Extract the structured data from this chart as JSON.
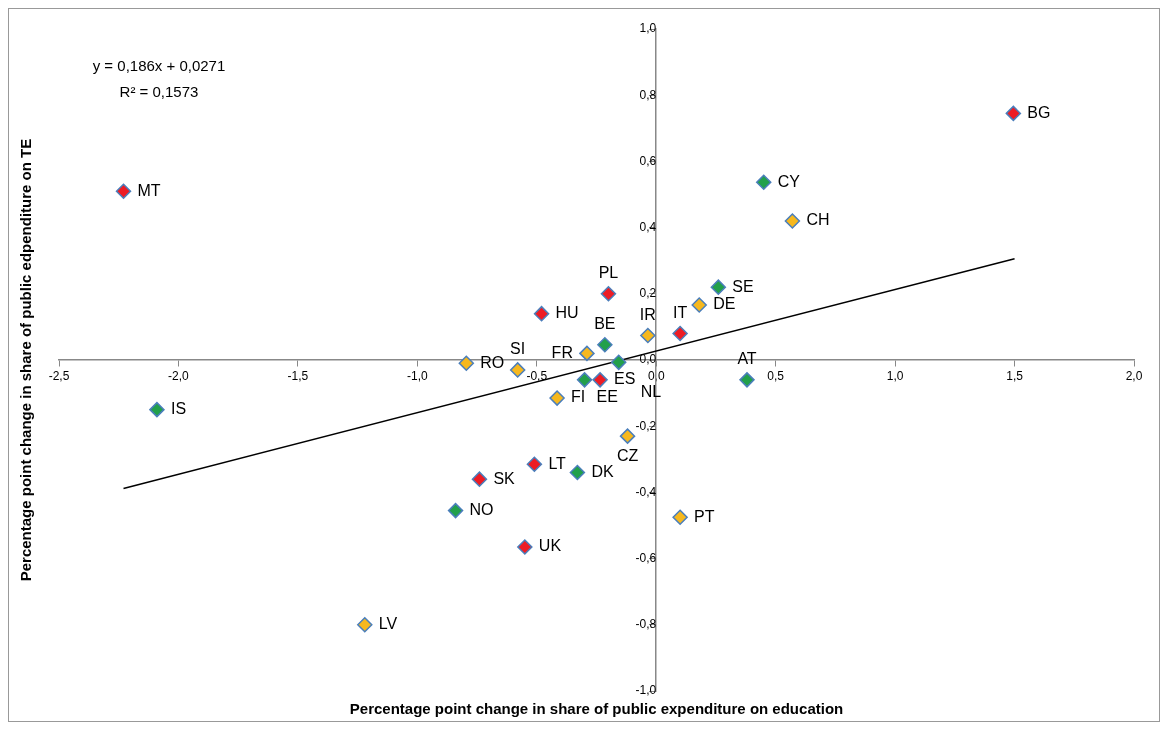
{
  "chart_data": {
    "type": "scatter",
    "xlabel": "Percentage point change in share of public expenditure on education",
    "ylabel": "Percentage point change in share of public edpenditure on TE",
    "xlim": [
      -2.5,
      2.0
    ],
    "ylim": [
      -1.0,
      1.0
    ],
    "xticks": [
      {
        "value": -2.5,
        "label": "-2,5"
      },
      {
        "value": -2.0,
        "label": "-2,0"
      },
      {
        "value": -1.5,
        "label": "-1,5"
      },
      {
        "value": -1.0,
        "label": "-1,0"
      },
      {
        "value": -0.5,
        "label": "-0,5"
      },
      {
        "value": 0,
        "label": "0,0"
      },
      {
        "value": 0.5,
        "label": "0,5"
      },
      {
        "value": 1.0,
        "label": "1,0"
      },
      {
        "value": 1.5,
        "label": "1,5"
      },
      {
        "value": 2.0,
        "label": "2,0"
      }
    ],
    "yticks": [
      {
        "value": -1.0,
        "label": "-1,0"
      },
      {
        "value": -0.8,
        "label": "-0,8"
      },
      {
        "value": -0.6,
        "label": "-0,6"
      },
      {
        "value": -0.4,
        "label": "-0,4"
      },
      {
        "value": -0.2,
        "label": "-0,2"
      },
      {
        "value": 0,
        "label": "0,0"
      },
      {
        "value": 0.2,
        "label": "0,2"
      },
      {
        "value": 0.4,
        "label": "0,4"
      },
      {
        "value": 0.6,
        "label": "0,6"
      },
      {
        "value": 0.8,
        "label": "0,8"
      },
      {
        "value": 1.0,
        "label": "1,0"
      }
    ],
    "grid": false,
    "legend": false,
    "marker": "diamond",
    "series": [
      {
        "type": "scatter",
        "x": [
          -2.23,
          -2.09,
          -1.22,
          -0.84,
          -0.795,
          -0.74,
          -0.58,
          -0.55,
          -0.51,
          -0.48,
          -0.415,
          -0.33,
          -0.3,
          -0.29,
          -0.235,
          -0.215,
          -0.2,
          -0.157,
          -0.12,
          -0.035,
          0.1,
          0.1,
          0.18,
          0.26,
          0.38,
          0.45,
          0.57,
          1.495
        ],
        "values": [
          0.51,
          -0.15,
          -0.8,
          -0.455,
          -0.01,
          -0.36,
          -0.03,
          -0.565,
          -0.315,
          0.14,
          -0.115,
          -0.34,
          -0.06,
          0.02,
          -0.06,
          0.046,
          0.2,
          -0.007,
          -0.23,
          0.074,
          0.08,
          -0.475,
          0.166,
          0.22,
          -0.06,
          0.537,
          0.42,
          0.745
        ],
        "colors": [
          "#ed1c24",
          "#22a04b",
          "#f6b81e",
          "#22a04b",
          "#f6b81e",
          "#ed1c24",
          "#f6b81e",
          "#ed1c24",
          "#ed1c24",
          "#ed1c24",
          "#f6b81e",
          "#22a04b",
          "#22a04b",
          "#f6b81e",
          "#ed1c24",
          "#22a04b",
          "#ed1c24",
          "#22a04b",
          "#f6b81e",
          "#f6b81e",
          "#ed1c24",
          "#f6b81e",
          "#f6b81e",
          "#22a04b",
          "#22a04b",
          "#22a04b",
          "#f6b81e",
          "#ed1c24"
        ]
      },
      {
        "type": "line",
        "x": [
          -2.23,
          1.5
        ],
        "values": [
          -0.388,
          0.306
        ],
        "color": "#000000",
        "marker": "none"
      }
    ],
    "annotations": [
      "y = 0,186x + 0,0271",
      "R² = 0,1573",
      {
        "text": "MT",
        "x": -2.23,
        "y": 0.51
      },
      {
        "text": "IS",
        "x": -2.09,
        "y": -0.15
      },
      {
        "text": "LV",
        "x": -1.22,
        "y": -0.8
      },
      {
        "text": "NO",
        "x": -0.84,
        "y": -0.455
      },
      {
        "text": "RO",
        "x": -0.795,
        "y": -0.01
      },
      {
        "text": "SK",
        "x": -0.74,
        "y": -0.36
      },
      {
        "text": "SI",
        "x": -0.58,
        "y": -0.03
      },
      {
        "text": "UK",
        "x": -0.55,
        "y": -0.565
      },
      {
        "text": "LT",
        "x": -0.51,
        "y": -0.315
      },
      {
        "text": "HU",
        "x": -0.48,
        "y": 0.14
      },
      {
        "text": "FI",
        "x": -0.415,
        "y": -0.115
      },
      {
        "text": "DK",
        "x": -0.33,
        "y": -0.34
      },
      {
        "text": "EE",
        "x": -0.3,
        "y": -0.06
      },
      {
        "text": "FR",
        "x": -0.29,
        "y": 0.02
      },
      {
        "text": "ES",
        "x": -0.235,
        "y": -0.06
      },
      {
        "text": "BE",
        "x": -0.215,
        "y": 0.046
      },
      {
        "text": "PL",
        "x": -0.2,
        "y": 0.2
      },
      {
        "text": "NL",
        "x": -0.157,
        "y": -0.007
      },
      {
        "text": "CZ",
        "x": -0.12,
        "y": -0.23
      },
      {
        "text": "IR",
        "x": -0.035,
        "y": 0.074
      },
      {
        "text": "IT",
        "x": 0.1,
        "y": 0.08
      },
      {
        "text": "PT",
        "x": 0.1,
        "y": -0.475
      },
      {
        "text": "DE",
        "x": 0.18,
        "y": 0.166
      },
      {
        "text": "SE",
        "x": 0.26,
        "y": 0.22
      },
      {
        "text": "AT",
        "x": 0.38,
        "y": -0.06
      },
      {
        "text": "CY",
        "x": 0.45,
        "y": 0.537
      },
      {
        "text": "CH",
        "x": 0.57,
        "y": 0.42
      },
      {
        "text": "BG",
        "x": 1.495,
        "y": 0.745
      }
    ]
  }
}
